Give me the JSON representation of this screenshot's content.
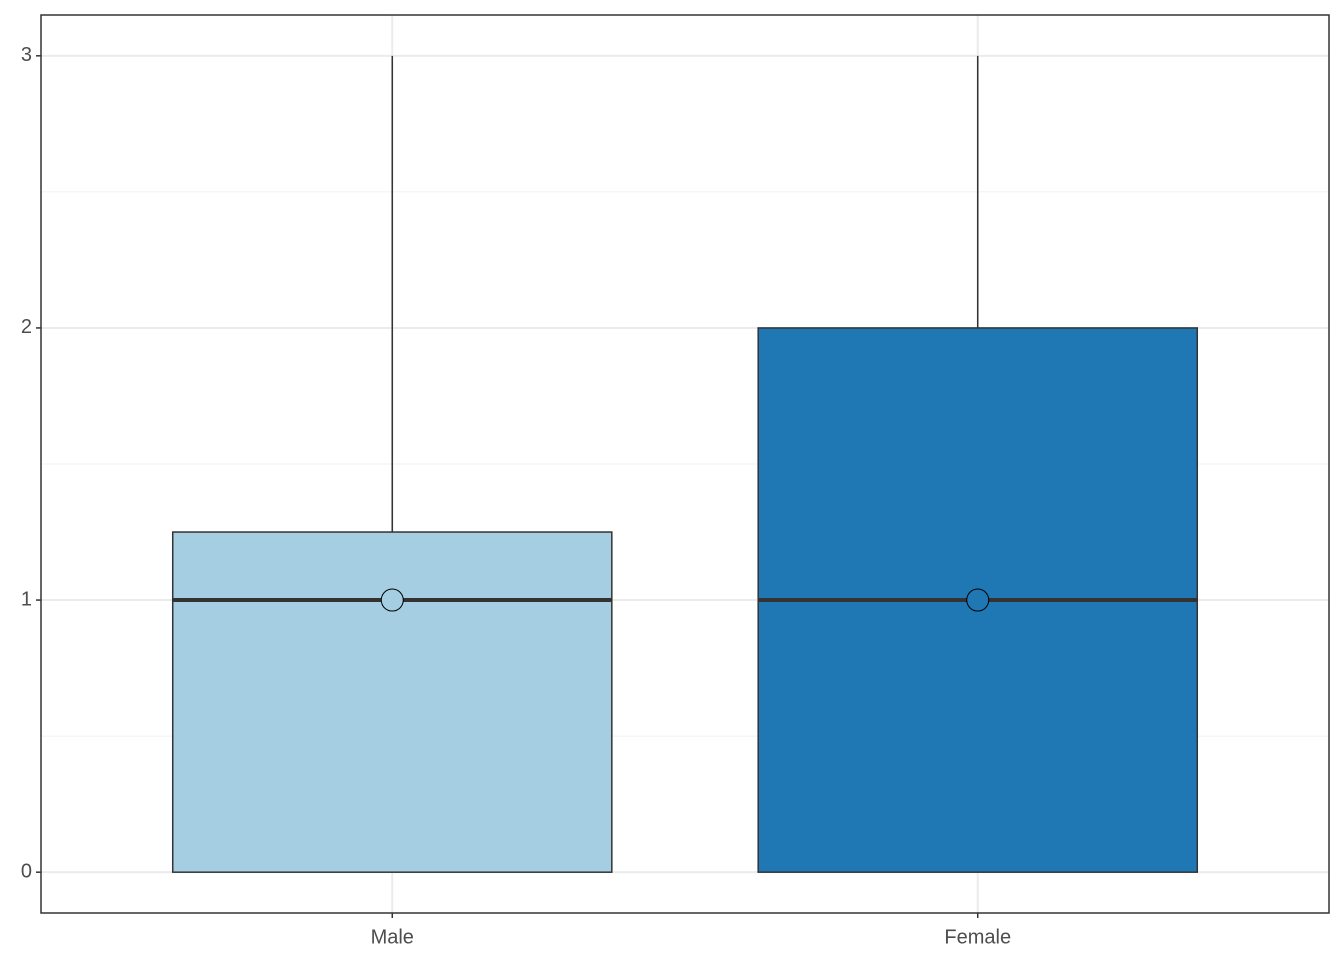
{
  "chart_data": {
    "type": "box",
    "categories": [
      "Male",
      "Female"
    ],
    "boxes": [
      {
        "min": 0,
        "q1": 0,
        "median": 1,
        "q3": 1.25,
        "max": 3,
        "mean": 1,
        "color": "#a6cee3"
      },
      {
        "min": 0,
        "q1": 0,
        "median": 1,
        "q3": 2,
        "max": 3,
        "mean": 1,
        "color": "#1f78b4"
      }
    ],
    "ylim": [
      -0.15,
      3.15
    ],
    "yticks": [
      0,
      1,
      2,
      3
    ],
    "minor_yticks": [
      0.5,
      1.5,
      2.5
    ],
    "grid": true
  }
}
